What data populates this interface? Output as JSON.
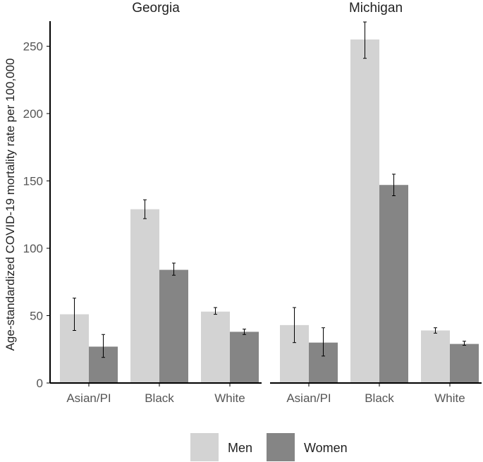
{
  "chart_data": {
    "type": "bar",
    "ylabel": "Age-standardized COVID-19 mortality rate per 100,000",
    "xlabel": "",
    "ylim": [
      0,
      270
    ],
    "yticks": [
      0,
      50,
      100,
      150,
      200,
      250
    ],
    "categories": [
      "Asian/PI",
      "Black",
      "White"
    ],
    "colors": {
      "Men": "#d3d3d3",
      "Women": "#858585"
    },
    "legend": {
      "position": "bottom",
      "entries": [
        "Men",
        "Women"
      ]
    },
    "panels": [
      {
        "title": "Georgia",
        "series": [
          {
            "name": "Men",
            "values": [
              51,
              129,
              53
            ],
            "ci_low": [
              39,
              122,
              51
            ],
            "ci_high": [
              63,
              136,
              56
            ]
          },
          {
            "name": "Women",
            "values": [
              27,
              84,
              38
            ],
            "ci_low": [
              19,
              80,
              36
            ],
            "ci_high": [
              36,
              89,
              40
            ]
          }
        ]
      },
      {
        "title": "Michigan",
        "series": [
          {
            "name": "Men",
            "values": [
              43,
              255,
              39
            ],
            "ci_low": [
              30,
              241,
              37
            ],
            "ci_high": [
              56,
              268,
              41
            ]
          },
          {
            "name": "Women",
            "values": [
              30,
              147,
              29
            ],
            "ci_low": [
              20,
              139,
              28
            ],
            "ci_high": [
              41,
              155,
              31
            ]
          }
        ]
      }
    ]
  }
}
